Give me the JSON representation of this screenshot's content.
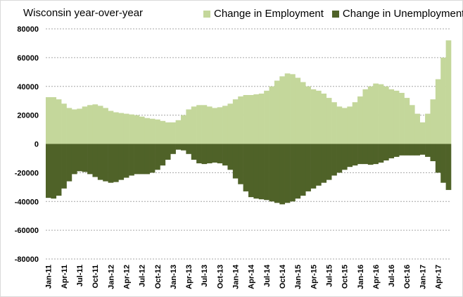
{
  "chart_data": {
    "type": "area",
    "title": "Wisconsin year-over-year",
    "ylim": [
      -80000,
      80000
    ],
    "yticks": [
      -80000,
      -60000,
      -40000,
      -20000,
      0,
      20000,
      40000,
      60000,
      80000
    ],
    "grid": true,
    "legend_position": "top-right",
    "x": [
      "Jan-11",
      "Feb-11",
      "Mar-11",
      "Apr-11",
      "May-11",
      "Jun-11",
      "Jul-11",
      "Aug-11",
      "Sep-11",
      "Oct-11",
      "Nov-11",
      "Dec-11",
      "Jan-12",
      "Feb-12",
      "Mar-12",
      "Apr-12",
      "May-12",
      "Jun-12",
      "Jul-12",
      "Aug-12",
      "Sep-12",
      "Oct-12",
      "Nov-12",
      "Dec-12",
      "Jan-13",
      "Feb-13",
      "Mar-13",
      "Apr-13",
      "May-13",
      "Jun-13",
      "Jul-13",
      "Aug-13",
      "Sep-13",
      "Oct-13",
      "Nov-13",
      "Dec-13",
      "Jan-14",
      "Feb-14",
      "Mar-14",
      "Apr-14",
      "May-14",
      "Jun-14",
      "Jul-14",
      "Aug-14",
      "Sep-14",
      "Oct-14",
      "Nov-14",
      "Dec-14",
      "Jan-15",
      "Feb-15",
      "Mar-15",
      "Apr-15",
      "May-15",
      "Jun-15",
      "Jul-15",
      "Aug-15",
      "Sep-15",
      "Oct-15",
      "Nov-15",
      "Dec-15",
      "Jan-16",
      "Feb-16",
      "Mar-16",
      "Apr-16",
      "May-16",
      "Jun-16",
      "Jul-16",
      "Aug-16",
      "Sep-16",
      "Oct-16",
      "Nov-16",
      "Dec-16",
      "Jan-17",
      "Feb-17",
      "Mar-17",
      "Apr-17",
      "May-17",
      "Jun-17"
    ],
    "tick_labels": [
      "Jan-11",
      "Apr-11",
      "Jul-11",
      "Oct-11",
      "Jan-12",
      "Apr-12",
      "Jul-12",
      "Oct-12",
      "Jan-13",
      "Apr-13",
      "Jul-13",
      "Oct-13",
      "Jan-14",
      "Apr-14",
      "Jul-14",
      "Oct-14",
      "Jan-15",
      "Apr-15",
      "Jul-15",
      "Oct-15",
      "Jan-16",
      "Apr-16",
      "Jul-16",
      "Oct-16",
      "Jan-17",
      "Apr-17"
    ],
    "series": [
      {
        "name": "Change in Employment",
        "color": "#c4d79b",
        "values": [
          32500,
          32500,
          31000,
          28000,
          25000,
          24000,
          24500,
          26000,
          27000,
          27500,
          26500,
          25000,
          23000,
          22000,
          21500,
          21000,
          20500,
          20000,
          19000,
          18000,
          17500,
          17000,
          16000,
          15000,
          15000,
          16500,
          20000,
          24000,
          26000,
          27000,
          27000,
          26000,
          25000,
          25500,
          26500,
          28000,
          31000,
          33000,
          34000,
          34000,
          34500,
          35000,
          37000,
          40000,
          44000,
          47000,
          49000,
          48500,
          46000,
          43000,
          40000,
          38000,
          37000,
          35000,
          32000,
          29000,
          26000,
          25000,
          26000,
          29000,
          33000,
          38000,
          40000,
          42000,
          41500,
          40000,
          38000,
          37000,
          35500,
          32000,
          27000,
          21000,
          15000,
          21000,
          31000,
          45000,
          60000,
          72000
        ]
      },
      {
        "name": "Change in Unemployment",
        "color": "#4f6228",
        "values": [
          -37500,
          -38000,
          -36000,
          -31000,
          -26000,
          -21000,
          -19000,
          -19500,
          -21000,
          -23000,
          -25000,
          -26000,
          -27000,
          -26500,
          -25000,
          -23500,
          -22000,
          -21000,
          -21000,
          -21000,
          -20000,
          -18000,
          -15000,
          -11000,
          -7000,
          -4000,
          -4500,
          -7000,
          -11000,
          -13500,
          -14000,
          -13500,
          -13000,
          -13500,
          -15000,
          -18000,
          -24000,
          -28000,
          -33000,
          -37000,
          -38000,
          -38500,
          -39000,
          -40000,
          -41000,
          -42000,
          -41000,
          -40000,
          -38000,
          -36000,
          -33000,
          -31000,
          -29000,
          -27000,
          -25000,
          -22000,
          -20000,
          -18000,
          -16000,
          -15000,
          -14000,
          -14000,
          -14500,
          -14000,
          -13000,
          -11500,
          -10000,
          -9000,
          -8000,
          -8000,
          -8000,
          -8000,
          -7500,
          -9000,
          -12000,
          -20000,
          -27000,
          -32000
        ]
      }
    ]
  }
}
